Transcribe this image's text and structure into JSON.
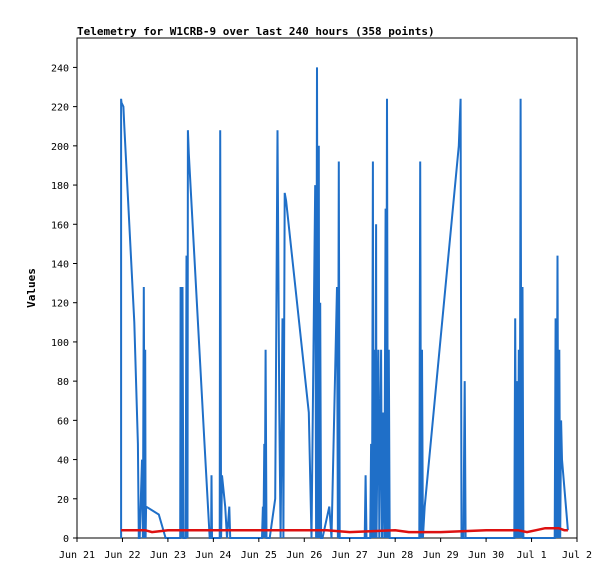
{
  "chart_data": {
    "type": "line",
    "title": "Telemetry for W1CRB-9 over last 240 hours (358 points)",
    "ylabel": "Values",
    "xlabel": "",
    "ylim": [
      0,
      255
    ],
    "xlim": [
      0,
      11
    ],
    "yticks": [
      0,
      20,
      40,
      60,
      80,
      100,
      120,
      140,
      160,
      180,
      200,
      220,
      240
    ],
    "x_tick_labels": [
      "Jun 21",
      "Jun 22",
      "Jun 23",
      "Jun 24",
      "Jun 25",
      "Jun 26",
      "Jun 27",
      "Jun 28",
      "Jun 29",
      "Jun 30",
      "Jul 1",
      "Jul 2"
    ],
    "grid": false,
    "series": [
      {
        "color": "#1f6fc8",
        "points": [
          [
            0.97,
            0
          ],
          [
            0.97,
            224
          ],
          [
            0.98,
            222
          ],
          [
            1.02,
            220
          ],
          [
            1.04,
            210
          ],
          [
            1.26,
            110
          ],
          [
            1.34,
            48
          ],
          [
            1.36,
            0
          ],
          [
            1.38,
            0
          ],
          [
            1.43,
            40
          ],
          [
            1.45,
            0
          ],
          [
            1.47,
            128
          ],
          [
            1.49,
            0
          ],
          [
            1.5,
            96
          ],
          [
            1.51,
            0
          ],
          [
            1.52,
            16
          ],
          [
            1.8,
            12
          ],
          [
            1.95,
            0
          ],
          [
            2.27,
            0
          ],
          [
            2.28,
            128
          ],
          [
            2.31,
            0
          ],
          [
            2.32,
            128
          ],
          [
            2.34,
            0
          ],
          [
            2.39,
            0
          ],
          [
            2.41,
            144
          ],
          [
            2.43,
            0
          ],
          [
            2.44,
            208
          ],
          [
            2.46,
            196
          ],
          [
            2.8,
            50
          ],
          [
            2.92,
            0
          ],
          [
            2.95,
            0
          ],
          [
            2.96,
            32
          ],
          [
            2.97,
            0
          ],
          [
            3.14,
            0
          ],
          [
            3.15,
            208
          ],
          [
            3.17,
            0
          ],
          [
            3.19,
            32
          ],
          [
            3.26,
            16
          ],
          [
            3.3,
            0
          ],
          [
            3.35,
            16
          ],
          [
            3.37,
            0
          ],
          [
            4.07,
            0
          ],
          [
            4.09,
            16
          ],
          [
            4.1,
            0
          ],
          [
            4.12,
            48
          ],
          [
            4.13,
            0
          ],
          [
            4.15,
            96
          ],
          [
            4.17,
            0
          ],
          [
            4.22,
            0
          ],
          [
            4.24,
            0
          ],
          [
            4.36,
            20
          ],
          [
            4.41,
            208
          ],
          [
            4.45,
            64
          ],
          [
            4.48,
            0
          ],
          [
            4.52,
            112
          ],
          [
            4.54,
            0
          ],
          [
            4.57,
            176
          ],
          [
            4.6,
            172
          ],
          [
            5.1,
            64
          ],
          [
            5.16,
            0
          ],
          [
            5.24,
            180
          ],
          [
            5.26,
            0
          ],
          [
            5.28,
            240
          ],
          [
            5.3,
            0
          ],
          [
            5.32,
            200
          ],
          [
            5.33,
            0
          ],
          [
            5.35,
            120
          ],
          [
            5.37,
            0
          ],
          [
            5.4,
            0
          ],
          [
            5.55,
            16
          ],
          [
            5.6,
            0
          ],
          [
            5.72,
            128
          ],
          [
            5.74,
            0
          ],
          [
            5.76,
            192
          ],
          [
            5.78,
            0
          ],
          [
            6.33,
            0
          ],
          [
            6.35,
            32
          ],
          [
            6.37,
            0
          ],
          [
            6.45,
            0
          ],
          [
            6.47,
            48
          ],
          [
            6.49,
            0
          ],
          [
            6.51,
            192
          ],
          [
            6.52,
            0
          ],
          [
            6.54,
            96
          ],
          [
            6.56,
            0
          ],
          [
            6.58,
            160
          ],
          [
            6.59,
            0
          ],
          [
            6.63,
            96
          ],
          [
            6.65,
            0
          ],
          [
            6.69,
            96
          ],
          [
            6.71,
            0
          ],
          [
            6.74,
            64
          ],
          [
            6.76,
            0
          ],
          [
            6.79,
            168
          ],
          [
            6.8,
            0
          ],
          [
            6.82,
            224
          ],
          [
            6.84,
            0
          ],
          [
            6.86,
            96
          ],
          [
            6.88,
            0
          ],
          [
            7.53,
            0
          ],
          [
            7.55,
            192
          ],
          [
            7.57,
            0
          ],
          [
            7.59,
            96
          ],
          [
            7.61,
            0
          ],
          [
            7.65,
            16
          ],
          [
            8.4,
            200
          ],
          [
            8.44,
            224
          ],
          [
            8.46,
            0
          ],
          [
            8.5,
            0
          ],
          [
            8.53,
            80
          ],
          [
            8.55,
            0
          ],
          [
            9.62,
            0
          ],
          [
            9.64,
            112
          ],
          [
            9.66,
            0
          ],
          [
            9.68,
            80
          ],
          [
            9.7,
            0
          ],
          [
            9.72,
            96
          ],
          [
            9.74,
            0
          ],
          [
            9.76,
            224
          ],
          [
            9.78,
            0
          ],
          [
            9.8,
            128
          ],
          [
            9.82,
            0
          ],
          [
            10.51,
            0
          ],
          [
            10.53,
            112
          ],
          [
            10.55,
            0
          ],
          [
            10.57,
            144
          ],
          [
            10.59,
            0
          ],
          [
            10.61,
            96
          ],
          [
            10.63,
            0
          ],
          [
            10.65,
            60
          ],
          [
            10.67,
            40
          ],
          [
            10.8,
            4
          ]
        ]
      },
      {
        "color": "#dd1111",
        "points": [
          [
            0.97,
            4
          ],
          [
            1.5,
            4
          ],
          [
            1.65,
            3
          ],
          [
            2.0,
            4
          ],
          [
            3.0,
            4
          ],
          [
            4.0,
            4
          ],
          [
            5.0,
            4
          ],
          [
            5.5,
            4
          ],
          [
            6.0,
            3
          ],
          [
            7.0,
            4
          ],
          [
            7.3,
            3
          ],
          [
            8.0,
            3
          ],
          [
            9.0,
            4
          ],
          [
            9.7,
            4
          ],
          [
            9.9,
            3
          ],
          [
            10.1,
            4
          ],
          [
            10.3,
            5
          ],
          [
            10.6,
            5
          ],
          [
            10.72,
            4
          ],
          [
            10.8,
            4
          ]
        ]
      }
    ]
  }
}
